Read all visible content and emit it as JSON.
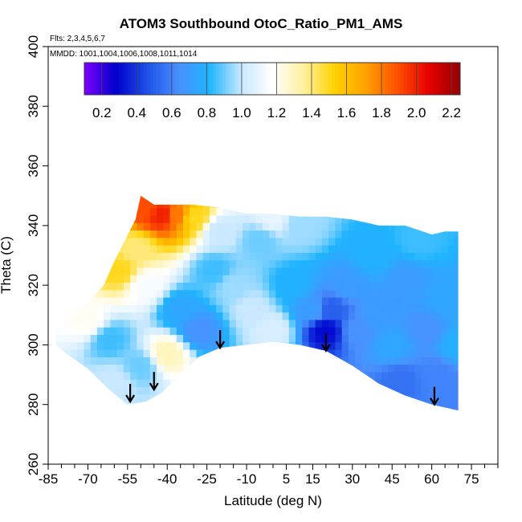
{
  "header": {
    "title": "ATOM3 Southbound OtoC_Ratio_PM1_AMS",
    "flights": "Flts: 2,3,4,5,6,7",
    "mmdd": "MMDD: 1001,1004,1006,1008,1011,1014"
  },
  "chart_data": {
    "type": "heatmap",
    "title": "ATOM3 Southbound OtoC_Ratio_PM1_AMS",
    "xlabel": "Latitude (deg N)",
    "ylabel": "Theta (C)",
    "xlim": [
      -85,
      85
    ],
    "ylim": [
      260,
      400
    ],
    "x_ticks": [
      -85,
      -70,
      -55,
      -40,
      -25,
      -10,
      5,
      15,
      30,
      45,
      60,
      75
    ],
    "x_tick_labels": [
      "-85",
      "-70",
      "-55",
      "-40",
      "-25",
      "-10",
      "5",
      "15",
      "30",
      "45",
      "60",
      "75"
    ],
    "y_ticks": [
      260,
      280,
      300,
      320,
      340,
      360,
      380,
      400
    ],
    "y_tick_labels": [
      "260",
      "280",
      "300",
      "320",
      "340",
      "360",
      "380",
      "400"
    ],
    "colorbar": {
      "min": 0.1,
      "max": 2.25,
      "ticks": [
        0.2,
        0.4,
        0.6,
        0.8,
        1.0,
        1.2,
        1.4,
        1.6,
        1.8,
        2.0,
        2.2
      ],
      "tick_labels": [
        "0.2",
        "0.4",
        "0.6",
        "0.8",
        "1.0",
        "1.2",
        "1.4",
        "1.6",
        "1.8",
        "2.0",
        "2.2"
      ],
      "colors": [
        "#7f00ff",
        "#0000cd",
        "#1e50e6",
        "#4a90ff",
        "#1eb4ff",
        "#c8e8ff",
        "#ffffff",
        "#fff0a0",
        "#ffd200",
        "#ffa000",
        "#ff5000",
        "#e60000",
        "#960000"
      ]
    },
    "data_region": {
      "top_boundary": [
        [
          -82,
          305
        ],
        [
          -76,
          310
        ],
        [
          -70,
          314
        ],
        [
          -64,
          320
        ],
        [
          -60,
          328
        ],
        [
          -56,
          335
        ],
        [
          -52,
          342
        ],
        [
          -50,
          350
        ],
        [
          -45,
          347
        ],
        [
          -30,
          347
        ],
        [
          -20,
          346
        ],
        [
          -10,
          344
        ],
        [
          0,
          344
        ],
        [
          10,
          343
        ],
        [
          20,
          343
        ],
        [
          30,
          342
        ],
        [
          40,
          340
        ],
        [
          50,
          340
        ],
        [
          60,
          337
        ],
        [
          65,
          338
        ],
        [
          70,
          338
        ]
      ],
      "bottom_boundary": [
        [
          70,
          278
        ],
        [
          60,
          280
        ],
        [
          50,
          283
        ],
        [
          40,
          287
        ],
        [
          30,
          293
        ],
        [
          20,
          298
        ],
        [
          10,
          300
        ],
        [
          0,
          301
        ],
        [
          -10,
          300
        ],
        [
          -20,
          299
        ],
        [
          -28,
          296
        ],
        [
          -35,
          290
        ],
        [
          -42,
          284
        ],
        [
          -48,
          281
        ],
        [
          -55,
          280
        ],
        [
          -62,
          285
        ],
        [
          -70,
          292
        ],
        [
          -78,
          297
        ],
        [
          -82,
          300
        ]
      ]
    },
    "value_field": [
      {
        "lat": -42,
        "theta": 344,
        "value": 2.0
      },
      {
        "lat": -48,
        "theta": 346,
        "value": 1.9
      },
      {
        "lat": -36,
        "theta": 344,
        "value": 1.8
      },
      {
        "lat": -30,
        "theta": 343,
        "value": 1.5
      },
      {
        "lat": -52,
        "theta": 332,
        "value": 1.4
      },
      {
        "lat": -58,
        "theta": 325,
        "value": 1.5
      },
      {
        "lat": -48,
        "theta": 320,
        "value": 1.15
      },
      {
        "lat": -70,
        "theta": 308,
        "value": 1.2
      },
      {
        "lat": -62,
        "theta": 302,
        "value": 0.85
      },
      {
        "lat": -40,
        "theta": 297,
        "value": 1.3
      },
      {
        "lat": -50,
        "theta": 293,
        "value": 0.9
      },
      {
        "lat": -60,
        "theta": 288,
        "value": 1.0
      },
      {
        "lat": -35,
        "theta": 312,
        "value": 0.75
      },
      {
        "lat": -28,
        "theta": 305,
        "value": 0.65
      },
      {
        "lat": -22,
        "theta": 325,
        "value": 0.85
      },
      {
        "lat": -15,
        "theta": 320,
        "value": 0.95
      },
      {
        "lat": -8,
        "theta": 312,
        "value": 1.0
      },
      {
        "lat": 0,
        "theta": 305,
        "value": 1.05
      },
      {
        "lat": -5,
        "theta": 335,
        "value": 0.9
      },
      {
        "lat": 10,
        "theta": 340,
        "value": 0.95
      },
      {
        "lat": 8,
        "theta": 320,
        "value": 0.8
      },
      {
        "lat": 15,
        "theta": 312,
        "value": 0.7
      },
      {
        "lat": 20,
        "theta": 305,
        "value": 0.3
      },
      {
        "lat": 22,
        "theta": 312,
        "value": 0.5
      },
      {
        "lat": 28,
        "theta": 320,
        "value": 0.7
      },
      {
        "lat": 32,
        "theta": 305,
        "value": 0.65
      },
      {
        "lat": 38,
        "theta": 330,
        "value": 0.8
      },
      {
        "lat": 40,
        "theta": 310,
        "value": 0.7
      },
      {
        "lat": 45,
        "theta": 300,
        "value": 0.75
      },
      {
        "lat": 50,
        "theta": 322,
        "value": 0.7
      },
      {
        "lat": 55,
        "theta": 335,
        "value": 0.85
      },
      {
        "lat": 58,
        "theta": 305,
        "value": 0.65
      },
      {
        "lat": 62,
        "theta": 290,
        "value": 0.6
      },
      {
        "lat": 66,
        "theta": 315,
        "value": 0.75
      },
      {
        "lat": 70,
        "theta": 300,
        "value": 0.8
      },
      {
        "lat": 68,
        "theta": 285,
        "value": 0.6
      },
      {
        "lat": 48,
        "theta": 288,
        "value": 0.55
      },
      {
        "lat": 0,
        "theta": 343,
        "value": 1.1
      },
      {
        "lat": -20,
        "theta": 338,
        "value": 1.0
      }
    ],
    "tropopause_arrows": [
      {
        "lat": -54,
        "theta": 281
      },
      {
        "lat": -45,
        "theta": 285
      },
      {
        "lat": -20,
        "theta": 299
      },
      {
        "lat": 20,
        "theta": 298
      },
      {
        "lat": 61,
        "theta": 280
      }
    ]
  }
}
